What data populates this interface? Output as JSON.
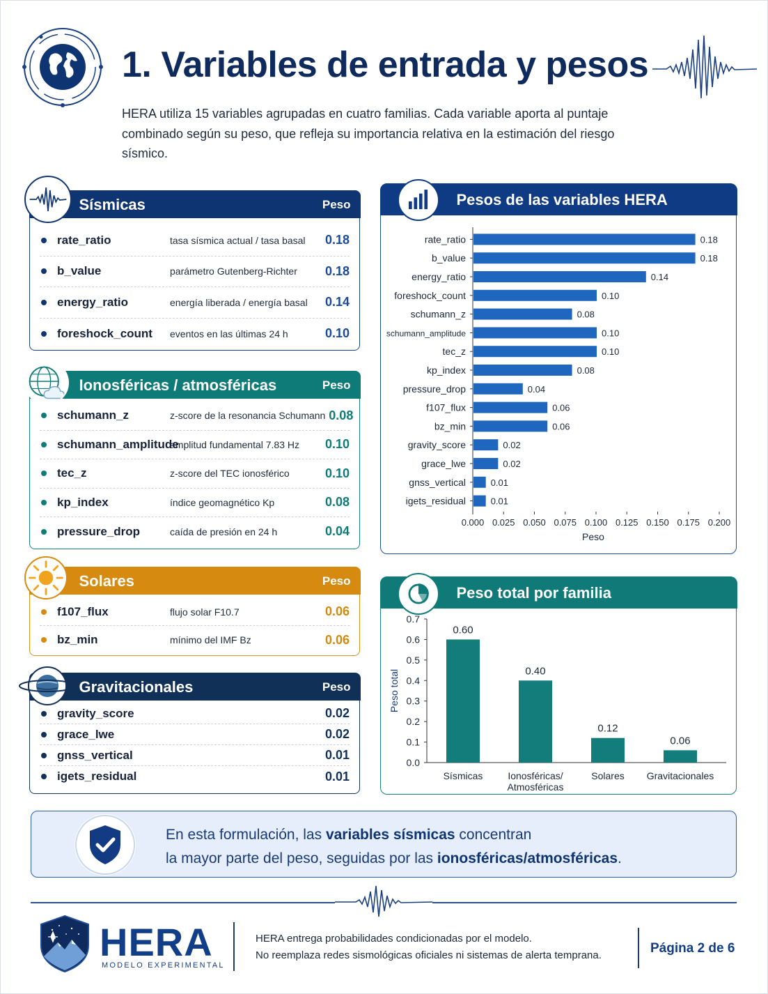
{
  "header": {
    "title": "1. Variables de entrada y pesos",
    "intro_line1": "HERA utiliza 15 variables agrupadas en cuatro familias. Cada variable aporta al puntaje",
    "intro_line2": "combinado según su peso, que refleja su importancia relativa en la estimación del riesgo",
    "intro_line3": "sísmico."
  },
  "families": {
    "seismic": {
      "name": "Sísmicas",
      "weight_header": "Peso",
      "color": "#0f3472",
      "items": [
        {
          "var": "rate_ratio",
          "desc": "tasa sísmica actual / tasa basal",
          "value": "0.18"
        },
        {
          "var": "b_value",
          "desc": "parámetro Gutenberg-Richter",
          "value": "0.18"
        },
        {
          "var": "energy_ratio",
          "desc": "energía liberada / energía basal",
          "value": "0.14"
        },
        {
          "var": "foreshock_count",
          "desc": "eventos en las últimas 24 h",
          "value": "0.10"
        }
      ]
    },
    "ionospheric": {
      "name": "Ionosféricas / atmosféricas",
      "weight_header": "Peso",
      "color": "#0f7b78",
      "items": [
        {
          "var": "schumann_z",
          "desc": "z-score de la resonancia Schumann",
          "value": "0.08"
        },
        {
          "var": "schumann_amplitude",
          "desc": "amplitud fundamental 7.83 Hz",
          "value": "0.10"
        },
        {
          "var": "tec_z",
          "desc": "z-score del TEC ionosférico",
          "value": "0.10"
        },
        {
          "var": "kp_index",
          "desc": "índice geomagnético Kp",
          "value": "0.08"
        },
        {
          "var": "pressure_drop",
          "desc": "caída de presión en 24 h",
          "value": "0.04"
        }
      ]
    },
    "solar": {
      "name": "Solares",
      "weight_header": "Peso",
      "color": "#d68a0f",
      "items": [
        {
          "var": "f107_flux",
          "desc": "flujo solar F10.7",
          "value": "0.06"
        },
        {
          "var": "bz_min",
          "desc": "mínimo del IMF Bz",
          "value": "0.06"
        }
      ]
    },
    "gravitational": {
      "name": "Gravitacionales",
      "weight_header": "Peso",
      "color": "#113057",
      "items": [
        {
          "var": "gravity_score",
          "desc": "",
          "value": "0.02"
        },
        {
          "var": "grace_lwe",
          "desc": "",
          "value": "0.02"
        },
        {
          "var": "gnss_vertical",
          "desc": "",
          "value": "0.01"
        },
        {
          "var": "igets_residual",
          "desc": "",
          "value": "0.01"
        }
      ]
    }
  },
  "chart_data": [
    {
      "type": "bar",
      "orientation": "horizontal",
      "title": "Pesos de las variables HERA",
      "xlabel": "Peso",
      "ylabel": "",
      "xlim": [
        0,
        0.2
      ],
      "xticks": [
        "0.000",
        "0.025",
        "0.050",
        "0.075",
        "0.100",
        "0.125",
        "0.150",
        "0.175",
        "0.200"
      ],
      "categories": [
        "rate_ratio",
        "b_value",
        "energy_ratio",
        "foreshock_count",
        "schumann_z",
        "schumann_amplitude",
        "tec_z",
        "kp_index",
        "pressure_drop",
        "f107_flux",
        "bz_min",
        "gravity_score",
        "grace_lwe",
        "gnss_vertical",
        "igets_residual"
      ],
      "values": [
        0.18,
        0.18,
        0.14,
        0.1,
        0.08,
        0.1,
        0.1,
        0.08,
        0.04,
        0.06,
        0.06,
        0.02,
        0.02,
        0.01,
        0.01
      ],
      "labels": [
        "0.18",
        "0.18",
        "0.14",
        "0.10",
        "0.08",
        "0.10",
        "0.10",
        "0.08",
        "0.04",
        "0.06",
        "0.06",
        "0.02",
        "0.02",
        "0.01",
        "0.01"
      ],
      "color": "#1f66bf",
      "grid": false
    },
    {
      "type": "bar",
      "orientation": "vertical",
      "title": "Peso total por familia",
      "xlabel": "",
      "ylabel": "Peso total",
      "ylim": [
        0,
        0.7
      ],
      "yticks": [
        "0.0",
        "0.1",
        "0.2",
        "0.3",
        "0.4",
        "0.5",
        "0.6",
        "0.7"
      ],
      "categories": [
        [
          "Sísmicas"
        ],
        [
          "Ionosféricas/",
          "Atmosféricas"
        ],
        [
          "Solares"
        ],
        [
          "Gravitacionales"
        ]
      ],
      "values": [
        0.6,
        0.4,
        0.12,
        0.06
      ],
      "labels": [
        "0.60",
        "0.40",
        "0.12",
        "0.06"
      ],
      "color": "#127d7b",
      "grid": false
    }
  ],
  "callout": {
    "part1": "En esta formulación, las ",
    "bold1": "variables sísmicas",
    "part2": " concentran",
    "part3": "la mayor parte del peso, seguidas por las ",
    "bold2": "ionosféricas/atmosféricas",
    "part4": "."
  },
  "footer": {
    "brand": "HERA",
    "brand_sub": "MODELO EXPERIMENTAL",
    "note1": "HERA entrega probabilidades condicionadas por el modelo.",
    "note2": "No reemplaza redes sismológicas oficiales ni sistemas de alerta temprana.",
    "page": "Página 2 de 6"
  }
}
